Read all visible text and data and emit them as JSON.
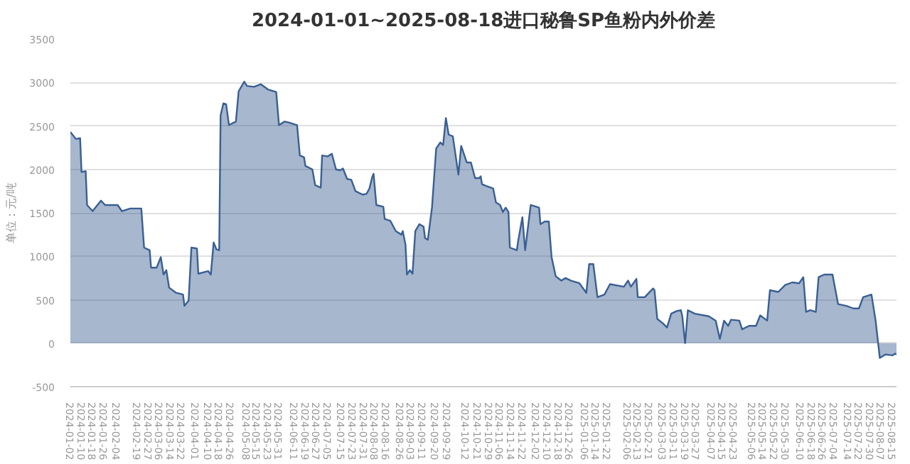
{
  "chart_data": {
    "type": "area",
    "title": "2024-01-01~2025-08-18进口秘鲁SP鱼粉内外价差",
    "ylabel": "单位：元/吨",
    "ylim": [
      -500,
      3500
    ],
    "yticks": [
      -500,
      0,
      500,
      1000,
      1500,
      2000,
      2500,
      3000,
      3500
    ],
    "xlim": [
      "2024-01-02",
      "2025-08-18"
    ],
    "xticks": [
      "2024-01-02",
      "2024-01-10",
      "2024-01-18",
      "2024-01-26",
      "2024-02-04",
      "2024-02-19",
      "2024-02-27",
      "2024-03-06",
      "2024-03-14",
      "2024-03-22",
      "2024-04-01",
      "2024-04-10",
      "2024-04-18",
      "2024-04-26",
      "2024-05-08",
      "2024-05-15",
      "2024-05-23",
      "2024-05-31",
      "2024-06-11",
      "2024-06-19",
      "2024-06-27",
      "2024-07-05",
      "2024-07-15",
      "2024-07-23",
      "2024-07-31",
      "2024-08-08",
      "2024-08-16",
      "2024-08-26",
      "2024-09-03",
      "2024-09-11",
      "2024-09-20",
      "2024-09-29",
      "2024-10-12",
      "2024-10-21",
      "2024-10-29",
      "2024-11-06",
      "2024-11-14",
      "2024-11-22",
      "2024-12-02",
      "2024-12-10",
      "2024-12-18",
      "2024-12-26",
      "2025-01-06",
      "2025-01-14",
      "2025-01-22",
      "2025-02-06",
      "2025-02-13",
      "2025-02-21",
      "2025-03-03",
      "2025-03-11",
      "2025-03-19",
      "2025-03-27",
      "2025-04-07",
      "2025-04-15",
      "2025-04-23",
      "2025-05-06",
      "2025-05-14",
      "2025-05-22",
      "2025-05-30",
      "2025-06-10",
      "2025-06-18",
      "2025-06-26",
      "2025-07-04",
      "2025-07-14",
      "2025-07-22",
      "2025-07-30",
      "2025-08-07",
      "2025-08-15"
    ],
    "grid": "y",
    "series": [
      {
        "color": "#3a5f93",
        "x": [
          "2024-01-02",
          "2024-01-06",
          "2024-01-09",
          "2024-01-10",
          "2024-01-13",
          "2024-01-14",
          "2024-01-18",
          "2024-01-24",
          "2024-01-27",
          "2024-02-05",
          "2024-02-08",
          "2024-02-14",
          "2024-02-22",
          "2024-02-24",
          "2024-02-28",
          "2024-02-29",
          "2024-03-04",
          "2024-03-07",
          "2024-03-09",
          "2024-03-11",
          "2024-03-13",
          "2024-03-18",
          "2024-03-23",
          "2024-03-24",
          "2024-03-27",
          "2024-03-29",
          "2024-04-02",
          "2024-04-03",
          "2024-04-10",
          "2024-04-12",
          "2024-04-14",
          "2024-04-16",
          "2024-04-18",
          "2024-04-19",
          "2024-04-21",
          "2024-04-23",
          "2024-04-25",
          "2024-04-30",
          "2024-05-02",
          "2024-05-06",
          "2024-05-08",
          "2024-05-13",
          "2024-05-18",
          "2024-05-23",
          "2024-05-29",
          "2024-05-31",
          "2024-06-04",
          "2024-06-07",
          "2024-06-13",
          "2024-06-15",
          "2024-06-18",
          "2024-06-19",
          "2024-06-24",
          "2024-06-26",
          "2024-06-30",
          "2024-07-01",
          "2024-07-05",
          "2024-07-08",
          "2024-07-11",
          "2024-07-14",
          "2024-07-16",
          "2024-07-19",
          "2024-07-22",
          "2024-07-25",
          "2024-07-30",
          "2024-08-02",
          "2024-08-04",
          "2024-08-06",
          "2024-08-07",
          "2024-08-09",
          "2024-08-14",
          "2024-08-15",
          "2024-08-19",
          "2024-08-23",
          "2024-08-27",
          "2024-08-28",
          "2024-08-30",
          "2024-08-31",
          "2024-09-02",
          "2024-09-04",
          "2024-09-06",
          "2024-09-09",
          "2024-09-12",
          "2024-09-13",
          "2024-09-15",
          "2024-09-18",
          "2024-09-21",
          "2024-09-24",
          "2024-09-26",
          "2024-09-28",
          "2024-09-30",
          "2024-10-03",
          "2024-10-07",
          "2024-10-09",
          "2024-10-13",
          "2024-10-16",
          "2024-10-19",
          "2024-10-22",
          "2024-10-23",
          "2024-10-24",
          "2024-10-27",
          "2024-11-01",
          "2024-11-03",
          "2024-11-06",
          "2024-11-08",
          "2024-11-10",
          "2024-11-12",
          "2024-11-13",
          "2024-11-18",
          "2024-11-19",
          "2024-11-22",
          "2024-11-24",
          "2024-11-28",
          "2024-12-04",
          "2024-12-05",
          "2024-12-08",
          "2024-12-11",
          "2024-12-13",
          "2024-12-16",
          "2024-12-20",
          "2024-12-23",
          "2024-12-27",
          "2025-01-02",
          "2025-01-07",
          "2025-01-09",
          "2025-01-12",
          "2025-01-15",
          "2025-01-20",
          "2025-01-24",
          "2025-02-03",
          "2025-02-06",
          "2025-02-08",
          "2025-02-12",
          "2025-02-13",
          "2025-02-18",
          "2025-02-21",
          "2025-02-24",
          "2025-02-25",
          "2025-02-27",
          "2025-03-03",
          "2025-03-06",
          "2025-03-09",
          "2025-03-13",
          "2025-03-16",
          "2025-03-17",
          "2025-03-19",
          "2025-03-21",
          "2025-03-26",
          "2025-04-05",
          "2025-04-10",
          "2025-04-13",
          "2025-04-16",
          "2025-04-19",
          "2025-04-21",
          "2025-04-27",
          "2025-04-29",
          "2025-05-04",
          "2025-05-09",
          "2025-05-12",
          "2025-05-17",
          "2025-05-19",
          "2025-05-25",
          "2025-05-30",
          "2025-06-04",
          "2025-06-09",
          "2025-06-12",
          "2025-06-14",
          "2025-06-17",
          "2025-06-21",
          "2025-06-23",
          "2025-06-27",
          "2025-07-03",
          "2025-07-07",
          "2025-07-13",
          "2025-07-18",
          "2025-07-22",
          "2025-07-25",
          "2025-07-31",
          "2025-08-03",
          "2025-08-06",
          "2025-08-10",
          "2025-08-15",
          "2025-08-17",
          "2025-08-18"
        ],
        "values": [
          2430,
          2350,
          2360,
          1970,
          1980,
          1590,
          1520,
          1640,
          1590,
          1590,
          1520,
          1550,
          1550,
          1100,
          1070,
          870,
          870,
          990,
          790,
          840,
          640,
          580,
          560,
          430,
          490,
          1100,
          1090,
          800,
          830,
          790,
          1160,
          1080,
          1070,
          2620,
          2760,
          2750,
          2510,
          2550,
          2900,
          3010,
          2960,
          2950,
          2980,
          2920,
          2890,
          2510,
          2550,
          2540,
          2510,
          2160,
          2140,
          2040,
          2000,
          1820,
          1790,
          2160,
          2150,
          2180,
          2000,
          1990,
          2010,
          1890,
          1880,
          1750,
          1710,
          1720,
          1780,
          1910,
          1950,
          1590,
          1570,
          1430,
          1410,
          1290,
          1250,
          1290,
          1130,
          790,
          840,
          800,
          1290,
          1370,
          1340,
          1210,
          1190,
          1560,
          2240,
          2310,
          2280,
          2590,
          2400,
          2380,
          1940,
          2270,
          2080,
          2080,
          1900,
          1900,
          1920,
          1830,
          1810,
          1780,
          1620,
          1590,
          1510,
          1560,
          1510,
          1100,
          1070,
          1180,
          1450,
          1070,
          1590,
          1560,
          1370,
          1400,
          1400,
          990,
          770,
          720,
          750,
          720,
          690,
          580,
          910,
          910,
          530,
          560,
          680,
          650,
          720,
          650,
          740,
          530,
          530,
          580,
          630,
          610,
          280,
          230,
          180,
          340,
          370,
          380,
          310,
          0,
          380,
          340,
          310,
          260,
          50,
          260,
          200,
          270,
          260,
          160,
          200,
          200,
          320,
          260,
          610,
          590,
          670,
          700,
          690,
          760,
          360,
          380,
          360,
          760,
          790,
          790,
          450,
          430,
          400,
          400,
          530,
          560,
          260,
          -170,
          -130,
          -140,
          -120,
          -130
        ]
      }
    ]
  }
}
